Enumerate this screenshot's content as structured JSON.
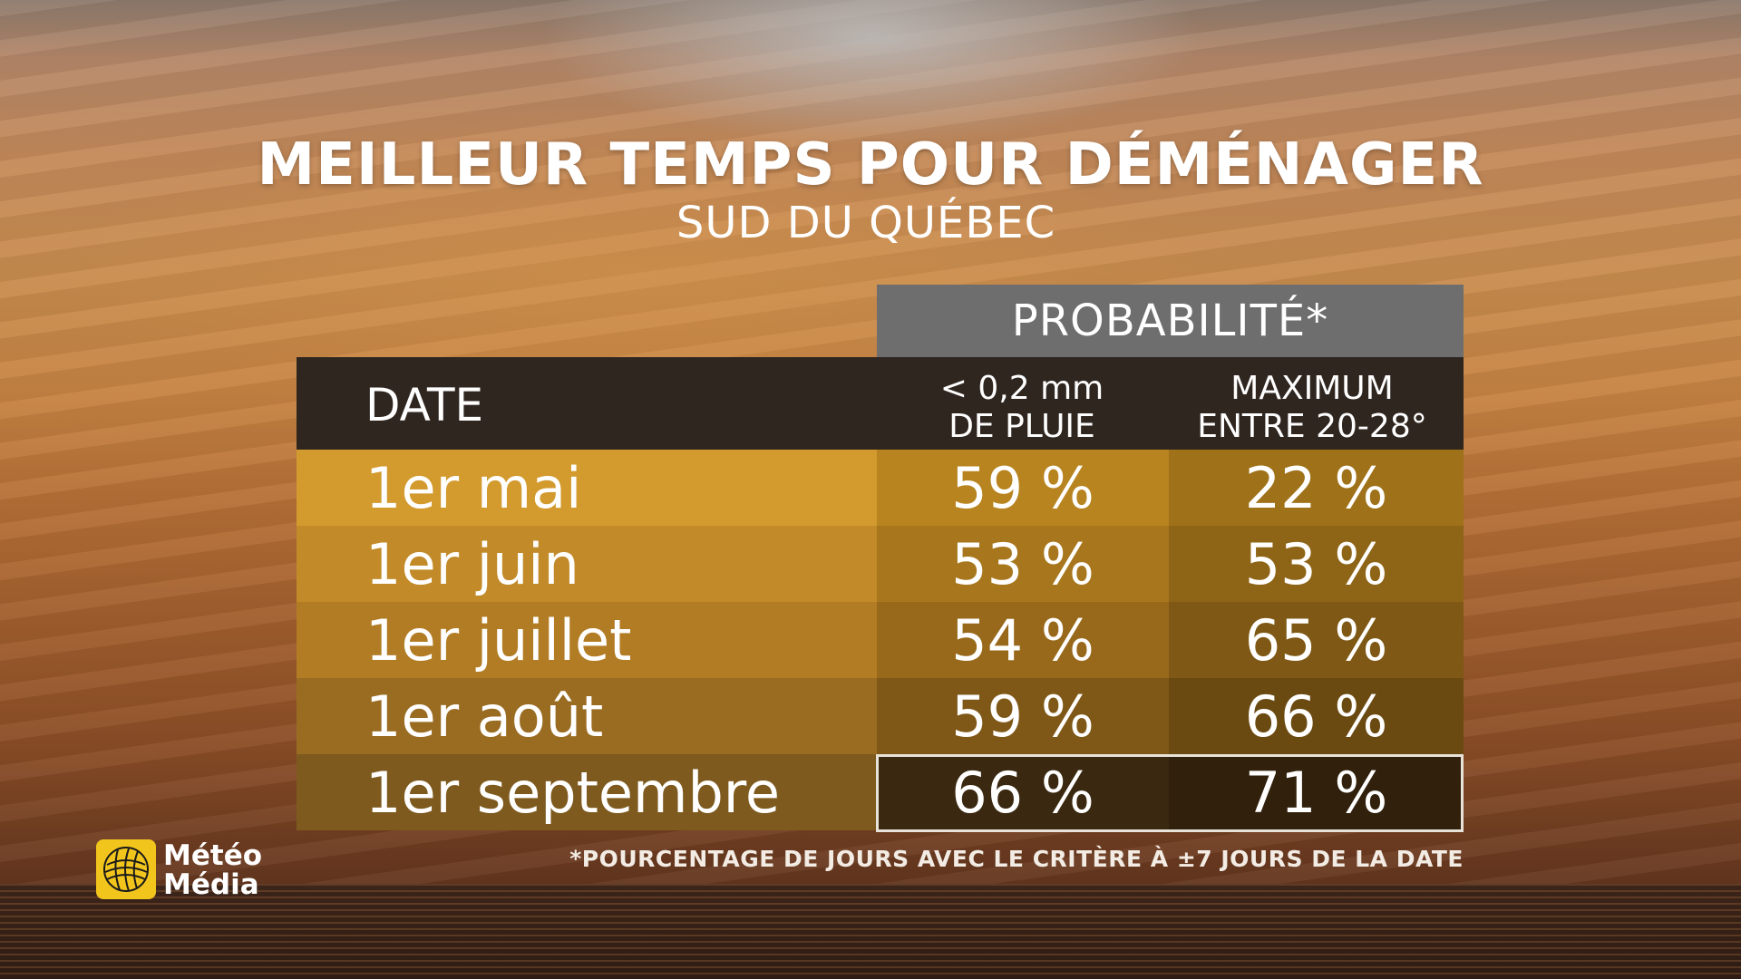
{
  "title": "MEILLEUR TEMPS POUR DÉMÉNAGER",
  "subtitle": "SUD DU QUÉBEC",
  "chart_data": {
    "type": "table",
    "title": "MEILLEUR TEMPS POUR DÉMÉNAGER",
    "subtitle": "SUD DU QUÉBEC",
    "group_header": "PROBABILITÉ*",
    "columns": [
      {
        "key": "date",
        "label": "DATE"
      },
      {
        "key": "pluie",
        "label_line1": "< 0,2 mm",
        "label_line2": "DE PLUIE"
      },
      {
        "key": "temp",
        "label_line1": "MAXIMUM",
        "label_line2": "ENTRE 20-28°"
      }
    ],
    "rows": [
      {
        "date": "1er mai",
        "pluie": "59 %",
        "temp": "22 %",
        "pluie_value": 59,
        "temp_value": 22
      },
      {
        "date": "1er juin",
        "pluie": "53 %",
        "temp": "53 %",
        "pluie_value": 53,
        "temp_value": 53
      },
      {
        "date": "1er juillet",
        "pluie": "54 %",
        "temp": "65 %",
        "pluie_value": 54,
        "temp_value": 65
      },
      {
        "date": "1er août",
        "pluie": "59 %",
        "temp": "66 %",
        "pluie_value": 59,
        "temp_value": 66
      },
      {
        "date": "1er septembre",
        "pluie": "66 %",
        "temp": "71 %",
        "pluie_value": 66,
        "temp_value": 71
      }
    ],
    "highlighted_row": "1er septembre",
    "footnote": "*POURCENTAGE DE JOURS AVEC LE CRITÈRE À ±7 JOURS DE LA DATE"
  },
  "colors": {
    "row_date": [
      "#d39a2e",
      "#c28a28",
      "#b27c24",
      "#9a6c22",
      "#7e5a1e"
    ],
    "row_pluie": [
      "#b8841f",
      "#a8771d",
      "#98691b",
      "#7f5818",
      "#3a2810"
    ],
    "row_temp": [
      "#9f7119",
      "#8e6416",
      "#7e5814",
      "#6b4a12",
      "#30200c"
    ],
    "prob_header": "#6e6e6e",
    "header_row": "#302620",
    "logo_yellow": "#f2c51d"
  },
  "logo": {
    "line1": "Météo",
    "line2": "Média",
    "icon": "globe-icon"
  }
}
